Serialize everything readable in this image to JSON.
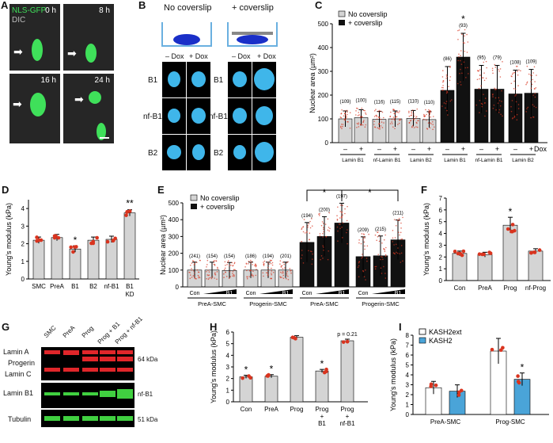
{
  "colors": {
    "gfp": "#3fe05a",
    "dapi": "#3fb6ea",
    "gray_bar": "#d4d4d4",
    "black_bar": "#111111",
    "dot": "#d9341f",
    "blue_bar": "#4aa4d8",
    "lamin_red": "#e0262a",
    "lamin_green": "#40d040"
  },
  "panelA": {
    "label": "A",
    "channel1": "NLS-GFP",
    "channel2": "DIC",
    "times": [
      "0 h",
      "8 h",
      "16 h",
      "24 h"
    ]
  },
  "panelB": {
    "label": "B",
    "cond1": "No coverslip",
    "cond2": "+ coverslip",
    "cols": [
      "– Dox",
      "+ Dox"
    ],
    "rows": [
      "B1",
      "nf-B1",
      "B2"
    ]
  },
  "panelC": {
    "label": "C",
    "ylabel": "Nuclear area  (µm²)",
    "legend": [
      "No coverslip",
      "+ coverslip"
    ],
    "dox": "Dox",
    "groups": [
      "Lamin B1",
      "nf-Lamin B1",
      "Lamin B2",
      "Lamin B1",
      "nf-Lamin B1",
      "Lamin B2"
    ],
    "signs": [
      "–",
      "+"
    ],
    "star": "*"
  },
  "panelD": {
    "label": "D",
    "ylabel": "Young's modulus (kPa)",
    "star1": "*",
    "star2": "**"
  },
  "panelE": {
    "label": "E",
    "ylabel": "Nuclear area  (µm²)",
    "legend": [
      "No coverslip",
      "+ coverslip"
    ],
    "sub": [
      "Con",
      "B1",
      "Con",
      "B1",
      "Con",
      "B1",
      "Con",
      "B1"
    ],
    "groups": [
      "PreA-SMC",
      "Progerin-SMC",
      "PreA-SMC",
      "Progerin-SMC"
    ],
    "star": "*"
  },
  "panelF": {
    "label": "F",
    "ylabel": "Young's modulus (kPa)",
    "star": "*"
  },
  "panelG": {
    "label": "G",
    "lanes": [
      "SMC",
      "PreA",
      "Prog",
      "Prog + B1",
      "Prog + nf-B1"
    ],
    "left": [
      "Lamin A",
      "Progerin",
      "Lamin C",
      "Lamin B1",
      "Tubulin"
    ],
    "right": [
      "64 kDa",
      "nf-B1",
      "51 kDa"
    ]
  },
  "panelH": {
    "label": "H",
    "ylabel": "Young's modulus (kPa)",
    "pval": "p = 0.21",
    "star": "*"
  },
  "panelI": {
    "label": "I",
    "ylabel": "Young's modulus (kPa)",
    "legend": [
      "KASH2ext",
      "KASH2"
    ],
    "groups": [
      "PreA-SMC",
      "Prog-SMC"
    ],
    "star": "*"
  },
  "chart_data": [
    {
      "id": "C",
      "type": "bar",
      "ylim": [
        0,
        500
      ],
      "yticks": [
        0,
        100,
        200,
        300,
        400,
        500
      ],
      "series": [
        {
          "name": "No coverslip"
        },
        {
          "name": "+ coverslip"
        }
      ],
      "values": [
        100,
        105,
        98,
        100,
        102,
        97,
        220,
        360,
        225,
        225,
        205,
        208
      ],
      "counts": [
        "(109)",
        "(100)",
        "(116)",
        "(115)",
        "(110)",
        "(110)",
        "(86)",
        "(93)",
        "(95)",
        "(79)",
        "(108)",
        "(109)"
      ]
    },
    {
      "id": "D",
      "type": "bar",
      "ylim": [
        0,
        4.5
      ],
      "yticks": [
        0,
        1,
        2,
        3,
        4
      ],
      "categories": [
        "SMC",
        "PreA",
        "B1",
        "B2",
        "nf-B1",
        "B1\nKD"
      ],
      "values": [
        2.2,
        2.35,
        1.7,
        2.2,
        2.25,
        3.75
      ]
    },
    {
      "id": "E",
      "type": "bar",
      "ylim": [
        0,
        500
      ],
      "yticks": [
        0,
        100,
        200,
        300,
        400,
        500
      ],
      "values": [
        100,
        100,
        98,
        100,
        100,
        100,
        265,
        300,
        380,
        180,
        185,
        280
      ],
      "counts": [
        "(241)",
        "(154)",
        "(154)",
        "(186)",
        "(194)",
        "(201)",
        "(194)",
        "(200)",
        "(197)",
        "(209)",
        "(215)",
        "(211)"
      ]
    },
    {
      "id": "F",
      "type": "bar",
      "ylim": [
        0,
        7
      ],
      "yticks": [
        0,
        1,
        2,
        3,
        4,
        5,
        6,
        7
      ],
      "categories": [
        "Con",
        "PreA",
        "Prog",
        "nf-Prog"
      ],
      "values": [
        2.3,
        2.2,
        4.7,
        2.5
      ]
    },
    {
      "id": "H",
      "type": "bar",
      "ylim": [
        0,
        6
      ],
      "yticks": [
        0,
        1,
        2,
        3,
        4,
        5,
        6
      ],
      "categories": [
        "Con",
        "PreA",
        "Prog",
        "Prog\n+\nB1",
        "Prog\n+\nnf-B1"
      ],
      "values": [
        2.15,
        2.2,
        5.55,
        2.65,
        5.25
      ]
    },
    {
      "id": "I",
      "type": "bar",
      "ylim": [
        0,
        8
      ],
      "yticks": [
        0,
        1,
        2,
        3,
        4,
        5,
        6,
        7,
        8
      ],
      "categories": [
        "PreA-SMC",
        "Prog-SMC"
      ],
      "series": [
        {
          "name": "KASH2ext",
          "values": [
            2.7,
            6.4
          ]
        },
        {
          "name": "KASH2",
          "values": [
            2.35,
            3.55
          ]
        }
      ]
    }
  ]
}
